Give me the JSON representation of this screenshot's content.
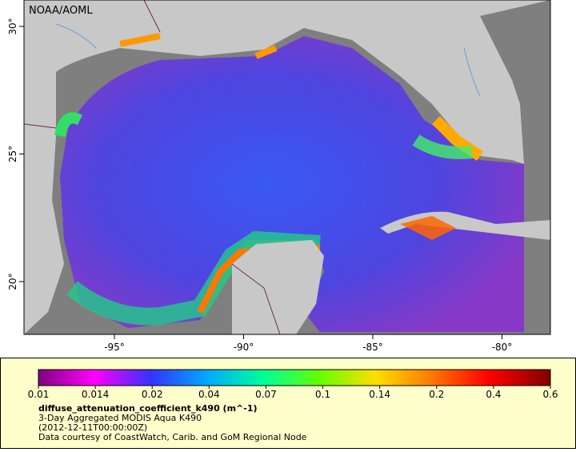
{
  "map": {
    "label": "NOAA/AOML",
    "lon_ticks": [
      {
        "value": -95,
        "label": "-95°"
      },
      {
        "value": -90,
        "label": "-90°"
      },
      {
        "value": -85,
        "label": "-85°"
      },
      {
        "value": -80,
        "label": "-80°"
      }
    ],
    "lat_ticks": [
      {
        "value": 30,
        "label": "30°"
      },
      {
        "value": 25,
        "label": "25°"
      },
      {
        "value": 20,
        "label": "20°"
      }
    ]
  },
  "legend": {
    "colorbar_labels": [
      0.01,
      0.014,
      0.02,
      0.04,
      0.07,
      0.1,
      0.14,
      0.2,
      0.4,
      0.6
    ],
    "variable": "diffuse_attenuation_coefficient_k490 (m^-1)",
    "description": "3-Day Aggregated MODIS Aqua K490",
    "time": "(2012-12-11T00:00:00Z)",
    "credit": "Data courtesy of CoastWatch, Carib. and GoM Regional Node"
  }
}
